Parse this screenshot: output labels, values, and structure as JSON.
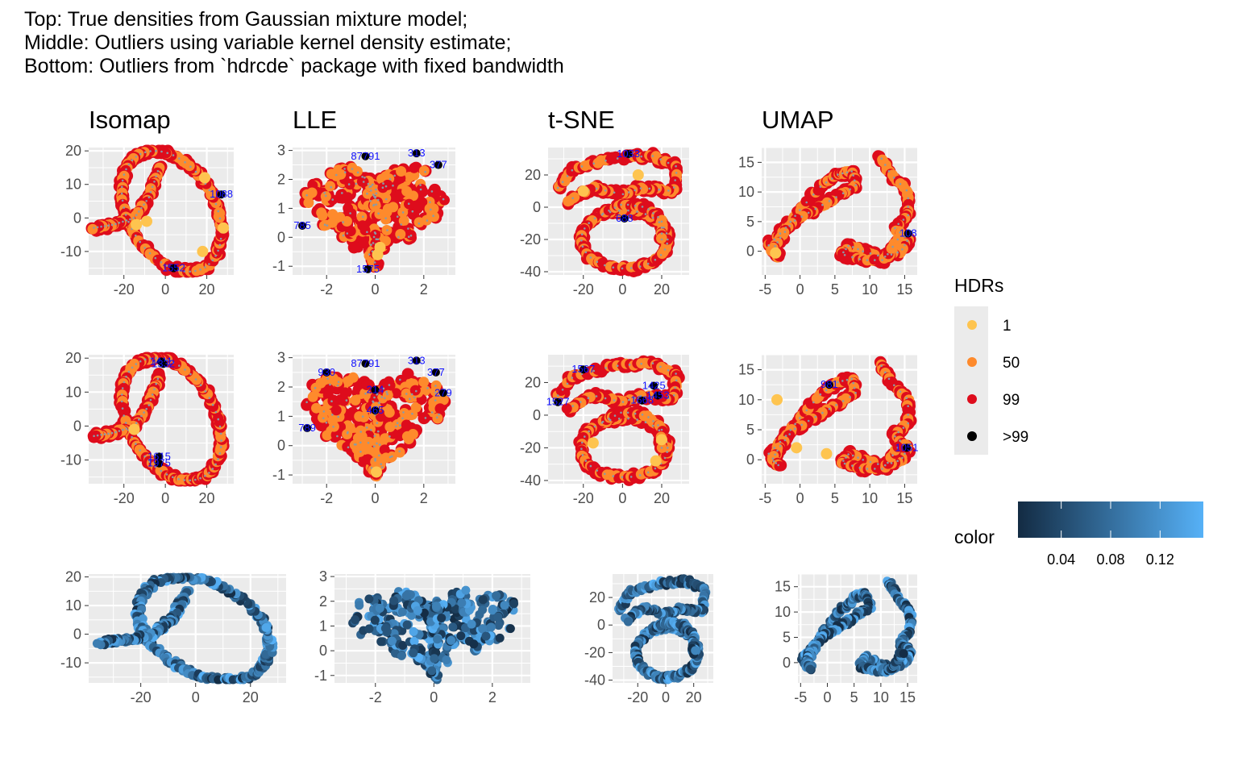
{
  "title_lines": [
    "Top: True densities from Gaussian mixture model;",
    "Middle: Outliers using variable kernel density estimate;",
    "Bottom: Outliers from `hdrcde` package with fixed bandwidth"
  ],
  "colors": {
    "panel_bg": "#ebebeb",
    "grid": "#ffffff",
    "hdr_1": "#fec44f",
    "hdr_50": "#fe8a2c",
    "hdr_99": "#de0c1c",
    "hdr_outlier": "#000000",
    "label": "#1111ff",
    "gradient_low": "#132b43",
    "gradient_high": "#56b1f7"
  },
  "legend_hdr": {
    "title": "HDRs",
    "items": [
      {
        "label": "1",
        "color": "#fec44f"
      },
      {
        "label": "50",
        "color": "#fe8a2c"
      },
      {
        "label": "99",
        "color": "#de0c1c"
      },
      {
        "label": ">99",
        "color": "#000000"
      }
    ]
  },
  "legend_color": {
    "title": "color",
    "range": [
      0.005,
      0.155
    ],
    "breaks": [
      0.04,
      0.08,
      0.12
    ],
    "labels": [
      "0.04",
      "0.08",
      "0.12"
    ]
  },
  "chart_data": [
    {
      "type": "scatter",
      "row": "Top",
      "column": "Isomap",
      "title": "Isomap",
      "shape": "isomap",
      "xlim": [
        -37,
        33
      ],
      "ylim": [
        -17,
        21
      ],
      "x_ticks": [
        -20,
        0,
        20
      ],
      "x_tick_labels": [
        "-20",
        "0",
        "20"
      ],
      "y_ticks": [
        -10,
        0,
        10,
        20
      ],
      "y_tick_labels": [
        "-10",
        "0",
        "10",
        "20"
      ],
      "outlier_labels": [
        {
          "text": "1088",
          "x": 27,
          "y": 7
        },
        {
          "text": "1552",
          "x": 4,
          "y": -15
        }
      ],
      "core_points": [
        [
          -9,
          -1
        ],
        [
          19,
          12
        ],
        [
          -14,
          -2
        ],
        [
          28,
          -3
        ],
        [
          18,
          -10
        ]
      ]
    },
    {
      "type": "scatter",
      "row": "Top",
      "column": "LLE",
      "title": "LLE",
      "shape": "lle",
      "xlim": [
        -3.4,
        3.3
      ],
      "ylim": [
        -1.3,
        3.1
      ],
      "x_ticks": [
        -2,
        0,
        2
      ],
      "x_tick_labels": [
        "-2",
        "0",
        "2"
      ],
      "y_ticks": [
        -1,
        0,
        1,
        2,
        3
      ],
      "y_tick_labels": [
        "-1",
        "0",
        "1",
        "2",
        "3"
      ],
      "outlier_labels": [
        {
          "text": "87791",
          "x": -0.4,
          "y": 2.8
        },
        {
          "text": "313",
          "x": 1.7,
          "y": 2.9
        },
        {
          "text": "377",
          "x": 2.6,
          "y": 2.5
        },
        {
          "text": "785",
          "x": -3.0,
          "y": 0.4
        },
        {
          "text": "1575",
          "x": -0.3,
          "y": -1.1
        }
      ],
      "core_points": [
        [
          0.1,
          -0.6
        ],
        [
          0.2,
          -0.35
        ]
      ]
    },
    {
      "type": "scatter",
      "row": "Top",
      "column": "t-SNE",
      "title": "t-SNE",
      "shape": "tsne",
      "xlim": [
        -38,
        34
      ],
      "ylim": [
        -42,
        37
      ],
      "x_ticks": [
        -20,
        0,
        20
      ],
      "x_tick_labels": [
        "-20",
        "0",
        "20"
      ],
      "y_ticks": [
        -40,
        -20,
        0,
        20
      ],
      "y_tick_labels": [
        "-40",
        "-20",
        "0",
        "20"
      ],
      "outlier_labels": [
        {
          "text": "1033",
          "x": 3,
          "y": 33
        },
        {
          "text": "688",
          "x": 1,
          "y": -7
        }
      ],
      "core_points": [
        [
          -20,
          10
        ],
        [
          8,
          20
        ]
      ]
    },
    {
      "type": "scatter",
      "row": "Top",
      "column": "UMAP",
      "title": "UMAP",
      "shape": "umap",
      "xlim": [
        -5.5,
        16.8
      ],
      "ylim": [
        -4,
        17.5
      ],
      "x_ticks": [
        -5,
        0,
        5,
        10,
        15
      ],
      "x_tick_labels": [
        "-5",
        "0",
        "5",
        "10",
        "15"
      ],
      "y_ticks": [
        0,
        5,
        10,
        15
      ],
      "y_tick_labels": [
        "0",
        "5",
        "10",
        "15"
      ],
      "outlier_labels": [
        {
          "text": "108",
          "x": 15.5,
          "y": 3
        }
      ],
      "core_points": [
        [
          -3.5,
          -0.3
        ]
      ]
    },
    {
      "type": "scatter",
      "row": "Middle",
      "column": "Isomap",
      "shape": "isomap",
      "xlim": [
        -37,
        33
      ],
      "ylim": [
        -17,
        21
      ],
      "x_ticks": [
        -20,
        0,
        20
      ],
      "x_tick_labels": [
        "-20",
        "0",
        "20"
      ],
      "y_ticks": [
        -10,
        0,
        10,
        20
      ],
      "y_tick_labels": [
        "-10",
        "0",
        "10",
        "20"
      ],
      "outlier_labels": [
        {
          "text": "1411",
          "x": -2,
          "y": 19
        },
        {
          "text": "1332",
          "x": -1,
          "y": 18.3
        },
        {
          "text": "1615",
          "x": -3,
          "y": -9
        },
        {
          "text": "1975",
          "x": -3,
          "y": -11
        }
      ],
      "core_points": [
        [
          -15,
          -1
        ]
      ]
    },
    {
      "type": "scatter",
      "row": "Middle",
      "column": "LLE",
      "shape": "lle",
      "xlim": [
        -3.4,
        3.3
      ],
      "ylim": [
        -1.3,
        3.1
      ],
      "x_ticks": [
        -2,
        0,
        2
      ],
      "x_tick_labels": [
        "-2",
        "0",
        "2"
      ],
      "y_ticks": [
        -1,
        0,
        1,
        2,
        3
      ],
      "y_tick_labels": [
        "-1",
        "0",
        "1",
        "2",
        "3"
      ],
      "outlier_labels": [
        {
          "text": "87791",
          "x": -0.4,
          "y": 2.8
        },
        {
          "text": "313",
          "x": 1.7,
          "y": 2.9
        },
        {
          "text": "377",
          "x": 2.5,
          "y": 2.5
        },
        {
          "text": "279",
          "x": 2.8,
          "y": 1.8
        },
        {
          "text": "930",
          "x": -2.0,
          "y": 2.5
        },
        {
          "text": "214",
          "x": 0.0,
          "y": 1.9
        },
        {
          "text": "465",
          "x": 0.0,
          "y": 1.2
        },
        {
          "text": "789",
          "x": -2.8,
          "y": 0.6
        }
      ],
      "core_points": [
        [
          0.05,
          -0.9
        ]
      ]
    },
    {
      "type": "scatter",
      "row": "Middle",
      "column": "t-SNE",
      "shape": "tsne",
      "xlim": [
        -38,
        34
      ],
      "ylim": [
        -42,
        37
      ],
      "x_ticks": [
        -20,
        0,
        20
      ],
      "x_tick_labels": [
        "-20",
        "0",
        "20"
      ],
      "y_ticks": [
        -40,
        -20,
        0,
        20
      ],
      "y_tick_labels": [
        "-40",
        "-20",
        "0",
        "20"
      ],
      "outlier_labels": [
        {
          "text": "1567",
          "x": -20,
          "y": 28
        },
        {
          "text": "1527",
          "x": -33,
          "y": 8
        },
        {
          "text": "1425",
          "x": 16,
          "y": 18
        },
        {
          "text": "1453",
          "x": 18,
          "y": 12
        },
        {
          "text": "1668",
          "x": 10,
          "y": 9
        }
      ],
      "core_points": [
        [
          -15,
          -17
        ],
        [
          20,
          -15
        ],
        [
          17,
          -28
        ]
      ]
    },
    {
      "type": "scatter",
      "row": "Middle",
      "column": "UMAP",
      "shape": "umap",
      "xlim": [
        -5.5,
        16.8
      ],
      "ylim": [
        -4,
        17.5
      ],
      "x_ticks": [
        -5,
        0,
        5,
        10,
        15
      ],
      "x_tick_labels": [
        "-5",
        "0",
        "5",
        "10",
        "15"
      ],
      "y_ticks": [
        0,
        5,
        10,
        15
      ],
      "y_tick_labels": [
        "0",
        "5",
        "10",
        "15"
      ],
      "outlier_labels": [
        {
          "text": "981",
          "x": 4.2,
          "y": 12.5
        },
        {
          "text": "1051",
          "x": 15.3,
          "y": 2
        }
      ],
      "core_points": [
        [
          -3.3,
          10
        ],
        [
          -0.5,
          2
        ],
        [
          3.8,
          1
        ]
      ]
    },
    {
      "type": "scatter",
      "row": "Bottom",
      "column": "Isomap",
      "shape": "isomap",
      "xlim": [
        -39,
        33
      ],
      "ylim": [
        -17,
        21
      ],
      "x_ticks": [
        -20,
        0,
        20
      ],
      "x_tick_labels": [
        "-20",
        "0",
        "20"
      ],
      "y_ticks": [
        -10,
        0,
        10,
        20
      ],
      "y_tick_labels": [
        "-10",
        "0",
        "10",
        "20"
      ]
    },
    {
      "type": "scatter",
      "row": "Bottom",
      "column": "LLE",
      "shape": "lle",
      "xlim": [
        -3.4,
        3.3
      ],
      "ylim": [
        -1.3,
        3.1
      ],
      "x_ticks": [
        -2,
        0,
        2
      ],
      "x_tick_labels": [
        "-2",
        "0",
        "2"
      ],
      "y_ticks": [
        -1,
        0,
        1,
        2,
        3
      ],
      "y_tick_labels": [
        "-1",
        "0",
        "1",
        "2",
        "3"
      ]
    },
    {
      "type": "scatter",
      "row": "Bottom",
      "column": "t-SNE",
      "shape": "tsne",
      "xlim": [
        -38,
        34
      ],
      "ylim": [
        -42,
        37
      ],
      "x_ticks": [
        -20,
        0,
        20
      ],
      "x_tick_labels": [
        "-20",
        "0",
        "20"
      ],
      "y_ticks": [
        -40,
        -20,
        0,
        20
      ],
      "y_tick_labels": [
        "-40",
        "-20",
        "0",
        "20"
      ]
    },
    {
      "type": "scatter",
      "row": "Bottom",
      "column": "UMAP",
      "shape": "umap",
      "xlim": [
        -5.5,
        16.8
      ],
      "ylim": [
        -4,
        17.5
      ],
      "x_ticks": [
        -5,
        0,
        5,
        10,
        15
      ],
      "x_tick_labels": [
        "-5",
        "0",
        "5",
        "10",
        "15"
      ],
      "y_ticks": [
        0,
        5,
        10,
        15
      ],
      "y_tick_labels": [
        "0",
        "5",
        "10",
        "15"
      ]
    }
  ]
}
